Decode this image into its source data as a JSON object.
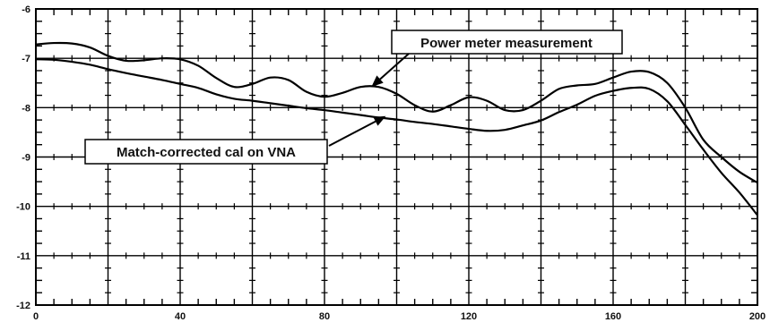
{
  "chart_data": {
    "type": "line",
    "title": "",
    "xlabel": "",
    "ylabel": "",
    "xlim": [
      0,
      200
    ],
    "ylim": [
      -12,
      -6
    ],
    "x_ticks": [
      0,
      40,
      80,
      120,
      160,
      200
    ],
    "y_ticks": [
      -6,
      -7,
      -8,
      -9,
      -10,
      -11,
      -12
    ],
    "grid": true,
    "series": [
      {
        "x": [
          0,
          5,
          10,
          15,
          20,
          25,
          30,
          35,
          40,
          45,
          50,
          55,
          60,
          65,
          70,
          75,
          80,
          85,
          90,
          95,
          100,
          105,
          110,
          115,
          120,
          125,
          130,
          135,
          140,
          145,
          150,
          155,
          160,
          165,
          170,
          175,
          180,
          185,
          190,
          195,
          200
        ],
        "values": [
          -6.72,
          -6.69,
          -6.7,
          -6.78,
          -6.95,
          -7.05,
          -7.04,
          -7.0,
          -7.02,
          -7.15,
          -7.4,
          -7.58,
          -7.52,
          -7.39,
          -7.44,
          -7.68,
          -7.78,
          -7.7,
          -7.58,
          -7.58,
          -7.72,
          -7.95,
          -8.08,
          -7.95,
          -7.79,
          -7.86,
          -8.05,
          -8.05,
          -7.86,
          -7.62,
          -7.55,
          -7.52,
          -7.39,
          -7.27,
          -7.28,
          -7.5,
          -8.0,
          -8.65,
          -9.0,
          -9.3,
          -9.52
        ]
      },
      {
        "x": [
          0,
          5,
          10,
          15,
          20,
          25,
          30,
          35,
          40,
          45,
          50,
          55,
          60,
          65,
          70,
          75,
          80,
          85,
          90,
          95,
          100,
          105,
          110,
          115,
          120,
          125,
          130,
          135,
          140,
          145,
          150,
          155,
          160,
          165,
          170,
          175,
          180,
          185,
          190,
          195,
          200
        ],
        "values": [
          -7.02,
          -7.03,
          -7.07,
          -7.13,
          -7.22,
          -7.3,
          -7.37,
          -7.44,
          -7.52,
          -7.6,
          -7.73,
          -7.82,
          -7.86,
          -7.91,
          -7.96,
          -8.01,
          -8.05,
          -8.1,
          -8.15,
          -8.2,
          -8.24,
          -8.29,
          -8.33,
          -8.38,
          -8.43,
          -8.47,
          -8.45,
          -8.36,
          -8.26,
          -8.09,
          -7.94,
          -7.76,
          -7.66,
          -7.6,
          -7.62,
          -7.87,
          -8.35,
          -8.85,
          -9.32,
          -9.72,
          -10.18
        ]
      }
    ],
    "annotations": [
      {
        "text": "Power meter measurement",
        "points_to": {
          "x": 93,
          "y": -7.58
        }
      },
      {
        "text": "Match-corrected cal on VNA",
        "points_to": {
          "x": 97,
          "y": -8.17
        }
      }
    ]
  }
}
